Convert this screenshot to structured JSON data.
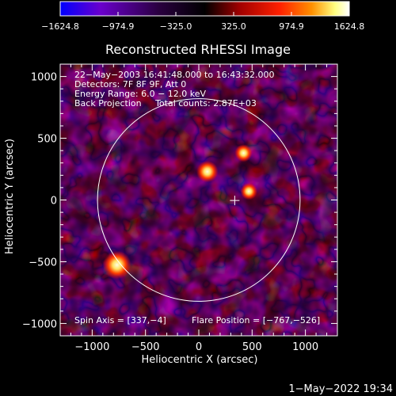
{
  "chart_data": {
    "type": "heatmap",
    "title": "Reconstructed RHESSI Image",
    "xlabel": "Heliocentric X (arcsec)",
    "ylabel": "Heliocentric Y (arcsec)",
    "xlim": [
      -1300,
      1300
    ],
    "ylim": [
      -1100,
      1100
    ],
    "x_ticks": [
      {
        "value": -1000,
        "label": "−1000"
      },
      {
        "value": -500,
        "label": "−500"
      },
      {
        "value": 0,
        "label": "0"
      },
      {
        "value": 500,
        "label": "500"
      },
      {
        "value": 1000,
        "label": "1000"
      }
    ],
    "y_ticks": [
      {
        "value": -1000,
        "label": "−1000"
      },
      {
        "value": -500,
        "label": "−500"
      },
      {
        "value": 0,
        "label": "0"
      },
      {
        "value": 500,
        "label": "500"
      },
      {
        "value": 1000,
        "label": "1000"
      }
    ],
    "colorbar": {
      "range": [
        -1624.8,
        1624.8
      ],
      "ticks": [
        "−1624.8",
        "−974.9",
        "−325.0",
        "325.0",
        "974.9",
        "1624.8"
      ],
      "colors": [
        "#0000ff",
        "#6a00cc",
        "#2a0040",
        "#000000",
        "#a00000",
        "#ff2000",
        "#ff9000",
        "#ffff80",
        "#ffffff"
      ]
    },
    "info_lines": [
      "22−May−2003 16:41:48.000 to 16:43:32.000",
      "Detectors: 7F 8F 9F, Att 0",
      "Energy Range: 6.0 − 12.0 keV",
      "Back Projection     Total counts: 2.87E+03"
    ],
    "spin_axis_text": "Spin Axis = [337,−4]",
    "flare_position_text": "Flare Position = [−767,−526]",
    "solar_limb": {
      "center": [
        0,
        0
      ],
      "radius_arcsec": 950
    },
    "spin_axis": [
      337,
      -4
    ],
    "sources": [
      {
        "x": -767,
        "y": -526,
        "intensity": 1624.8
      },
      {
        "x": 80,
        "y": 230,
        "intensity": 1050
      },
      {
        "x": 420,
        "y": 380,
        "intensity": 700
      },
      {
        "x": 470,
        "y": 70,
        "intensity": 640
      }
    ]
  },
  "footer": {
    "timestamp": "1−May−2022 19:34"
  }
}
